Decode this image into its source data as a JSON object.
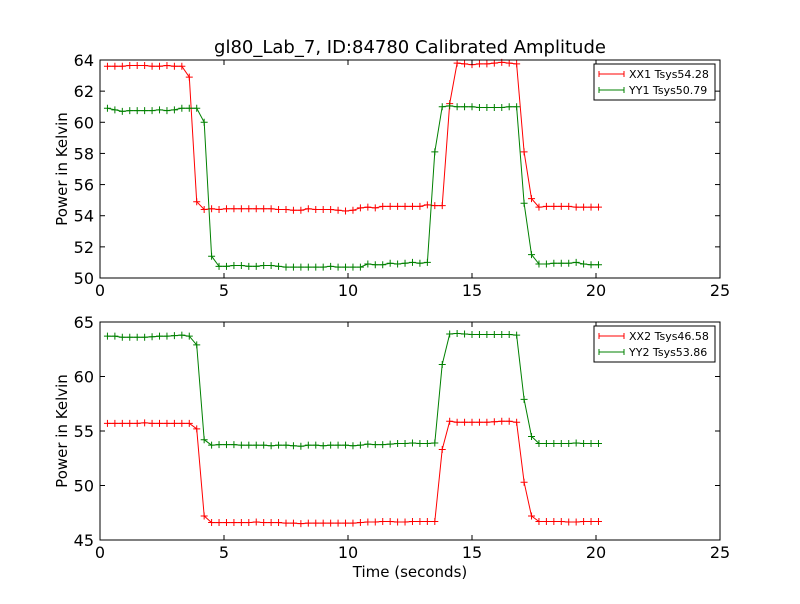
{
  "figure_title": "gl80_Lab_7, ID:84780 Calibrated Amplitude",
  "colors": {
    "red": "#ff0000",
    "green": "#008000"
  },
  "chart_data": [
    {
      "type": "line",
      "title": "gl80_Lab_7, ID:84780 Calibrated Amplitude",
      "xlabel": "",
      "ylabel": "Power in Kelvin",
      "xlim": [
        0,
        25
      ],
      "ylim": [
        50,
        64
      ],
      "x_ticks": [
        "0",
        "5",
        "10",
        "15",
        "20",
        "25"
      ],
      "y_ticks": [
        "50",
        "52",
        "54",
        "56",
        "58",
        "60",
        "62",
        "64"
      ],
      "legend_position": "top-right",
      "grid": false,
      "x": [
        0.3,
        0.6,
        0.9,
        1.2,
        1.5,
        1.8,
        2.1,
        2.4,
        2.7,
        3.0,
        3.3,
        3.6,
        3.9,
        4.2,
        4.5,
        4.8,
        5.1,
        5.4,
        5.7,
        6.0,
        6.3,
        6.6,
        6.9,
        7.2,
        7.5,
        7.8,
        8.1,
        8.4,
        8.7,
        9.0,
        9.3,
        9.6,
        9.9,
        10.2,
        10.5,
        10.8,
        11.1,
        11.4,
        11.7,
        12.0,
        12.3,
        12.6,
        12.9,
        13.2,
        13.5,
        13.8,
        14.1,
        14.4,
        14.7,
        15.0,
        15.3,
        15.6,
        15.9,
        16.2,
        16.5,
        16.8,
        17.1,
        17.4,
        17.7,
        18.0,
        18.3,
        18.6,
        18.9,
        19.2,
        19.5,
        19.8,
        20.1
      ],
      "series": [
        {
          "name": "XX1 Tsys54.28",
          "color": "#ff0000",
          "values": [
            63.6,
            63.6,
            63.6,
            63.65,
            63.65,
            63.65,
            63.6,
            63.6,
            63.65,
            63.6,
            63.6,
            62.9,
            54.9,
            54.4,
            54.45,
            54.4,
            54.45,
            54.45,
            54.45,
            54.45,
            54.45,
            54.45,
            54.45,
            54.4,
            54.4,
            54.35,
            54.35,
            54.45,
            54.4,
            54.4,
            54.4,
            54.35,
            54.3,
            54.35,
            54.5,
            54.55,
            54.5,
            54.6,
            54.6,
            54.6,
            54.6,
            54.6,
            54.6,
            54.7,
            54.65,
            54.65,
            61.2,
            63.8,
            63.75,
            63.7,
            63.75,
            63.75,
            63.8,
            63.85,
            63.8,
            63.75,
            58.1,
            55.1,
            54.55,
            54.6,
            54.6,
            54.6,
            54.6,
            54.55,
            54.55,
            54.55,
            54.55
          ]
        },
        {
          "name": "YY1 Tsys50.79",
          "color": "#008000",
          "values": [
            60.9,
            60.8,
            60.7,
            60.75,
            60.75,
            60.75,
            60.75,
            60.8,
            60.75,
            60.8,
            60.9,
            60.9,
            60.9,
            60.0,
            51.4,
            50.75,
            50.75,
            50.8,
            50.8,
            50.75,
            50.75,
            50.8,
            50.8,
            50.75,
            50.7,
            50.7,
            50.7,
            50.7,
            50.7,
            50.7,
            50.75,
            50.7,
            50.7,
            50.7,
            50.7,
            50.9,
            50.85,
            50.85,
            50.95,
            50.9,
            50.95,
            51.0,
            50.95,
            51.0,
            58.1,
            61.0,
            61.05,
            61.0,
            61.0,
            61.0,
            60.95,
            60.95,
            60.95,
            60.95,
            61.0,
            61.0,
            54.8,
            51.5,
            50.9,
            50.9,
            50.95,
            50.95,
            50.95,
            51.0,
            50.9,
            50.85,
            50.85
          ]
        }
      ]
    },
    {
      "type": "line",
      "title": "",
      "xlabel": "Time (seconds)",
      "ylabel": "Power in Kelvin",
      "xlim": [
        0,
        25
      ],
      "ylim": [
        45,
        65
      ],
      "x_ticks": [
        "0",
        "5",
        "10",
        "15",
        "20",
        "25"
      ],
      "y_ticks": [
        "45",
        "50",
        "55",
        "60",
        "65"
      ],
      "legend_position": "top-right",
      "grid": false,
      "x": [
        0.3,
        0.6,
        0.9,
        1.2,
        1.5,
        1.8,
        2.1,
        2.4,
        2.7,
        3.0,
        3.3,
        3.6,
        3.9,
        4.2,
        4.5,
        4.8,
        5.1,
        5.4,
        5.7,
        6.0,
        6.3,
        6.6,
        6.9,
        7.2,
        7.5,
        7.8,
        8.1,
        8.4,
        8.7,
        9.0,
        9.3,
        9.6,
        9.9,
        10.2,
        10.5,
        10.8,
        11.1,
        11.4,
        11.7,
        12.0,
        12.3,
        12.6,
        12.9,
        13.2,
        13.5,
        13.8,
        14.1,
        14.4,
        14.7,
        15.0,
        15.3,
        15.6,
        15.9,
        16.2,
        16.5,
        16.8,
        17.1,
        17.4,
        17.7,
        18.0,
        18.3,
        18.6,
        18.9,
        19.2,
        19.5,
        19.8,
        20.1
      ],
      "series": [
        {
          "name": "XX2 Tsys46.58",
          "color": "#ff0000",
          "values": [
            55.7,
            55.7,
            55.7,
            55.7,
            55.7,
            55.75,
            55.7,
            55.7,
            55.7,
            55.7,
            55.7,
            55.7,
            55.2,
            47.2,
            46.6,
            46.6,
            46.6,
            46.6,
            46.6,
            46.6,
            46.65,
            46.6,
            46.6,
            46.6,
            46.55,
            46.55,
            46.5,
            46.55,
            46.55,
            46.55,
            46.55,
            46.55,
            46.55,
            46.55,
            46.6,
            46.65,
            46.65,
            46.7,
            46.7,
            46.65,
            46.65,
            46.7,
            46.7,
            46.7,
            46.7,
            53.3,
            55.9,
            55.8,
            55.8,
            55.8,
            55.8,
            55.8,
            55.85,
            55.9,
            55.9,
            55.8,
            50.3,
            47.2,
            46.7,
            46.7,
            46.7,
            46.7,
            46.65,
            46.65,
            46.7,
            46.7,
            46.7
          ]
        },
        {
          "name": "YY2 Tsys53.86",
          "color": "#008000",
          "values": [
            63.7,
            63.7,
            63.6,
            63.6,
            63.6,
            63.6,
            63.65,
            63.7,
            63.7,
            63.75,
            63.8,
            63.7,
            62.9,
            54.2,
            53.7,
            53.75,
            53.75,
            53.75,
            53.7,
            53.7,
            53.7,
            53.7,
            53.65,
            53.7,
            53.7,
            53.65,
            53.6,
            53.7,
            53.7,
            53.65,
            53.7,
            53.7,
            53.7,
            53.65,
            53.7,
            53.8,
            53.75,
            53.75,
            53.8,
            53.85,
            53.85,
            53.9,
            53.85,
            53.85,
            53.9,
            61.1,
            63.9,
            63.95,
            63.9,
            63.85,
            63.85,
            63.85,
            63.85,
            63.85,
            63.85,
            63.8,
            57.9,
            54.5,
            53.85,
            53.85,
            53.85,
            53.85,
            53.85,
            53.9,
            53.85,
            53.85,
            53.85
          ]
        }
      ]
    }
  ]
}
